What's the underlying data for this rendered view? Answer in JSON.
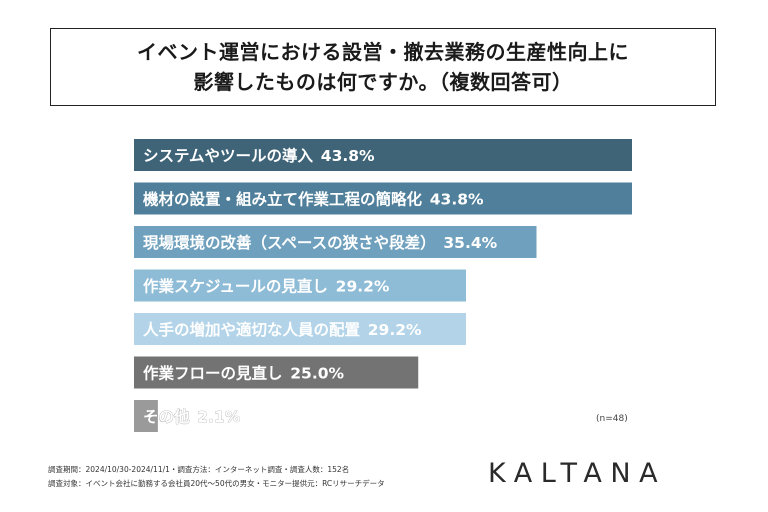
{
  "title_lines": [
    "イベント運営における設営・撤去業務の生産性向上に",
    "影響したものは何ですか。（複数回答可）"
  ],
  "sample_note": "(n=48)",
  "footnotes": [
    "調査期間：2024/10/30-2024/11/1・調査方法：インターネット調査・調査人数：152名",
    "調査対象：イベント会社に勤務する会社員20代〜50代の男女・モニター提供元：RCリサーチデータ"
  ],
  "brand": "KALTANA",
  "chart_data": {
    "type": "bar",
    "orientation": "horizontal",
    "title": "イベント運営における設営・撤去業務の生産性向上に影響したものは何ですか。（複数回答可）",
    "unit": "%",
    "xlim": [
      0,
      100
    ],
    "grid": false,
    "legend": "none",
    "categories": [
      "システムやツールの導入",
      "機材の設置・組み立て作業工程の簡略化",
      "現場環境の改善（スペースの狭さや段差）",
      "作業スケジュールの見直し",
      "人手の増加や適切な人員の配置",
      "作業フローの見直し",
      "その他"
    ],
    "values": [
      43.8,
      43.8,
      35.4,
      29.2,
      29.2,
      25.0,
      2.1
    ],
    "value_labels": [
      "43.8%",
      "43.8%",
      "35.4%",
      "29.2%",
      "29.2%",
      "25.0%",
      "2.1%"
    ],
    "colors": [
      "#3f6478",
      "#4f7f9a",
      "#6fa0bd",
      "#8ebbd6",
      "#b3d4e8",
      "#737373",
      "#9a9a9a"
    ]
  }
}
